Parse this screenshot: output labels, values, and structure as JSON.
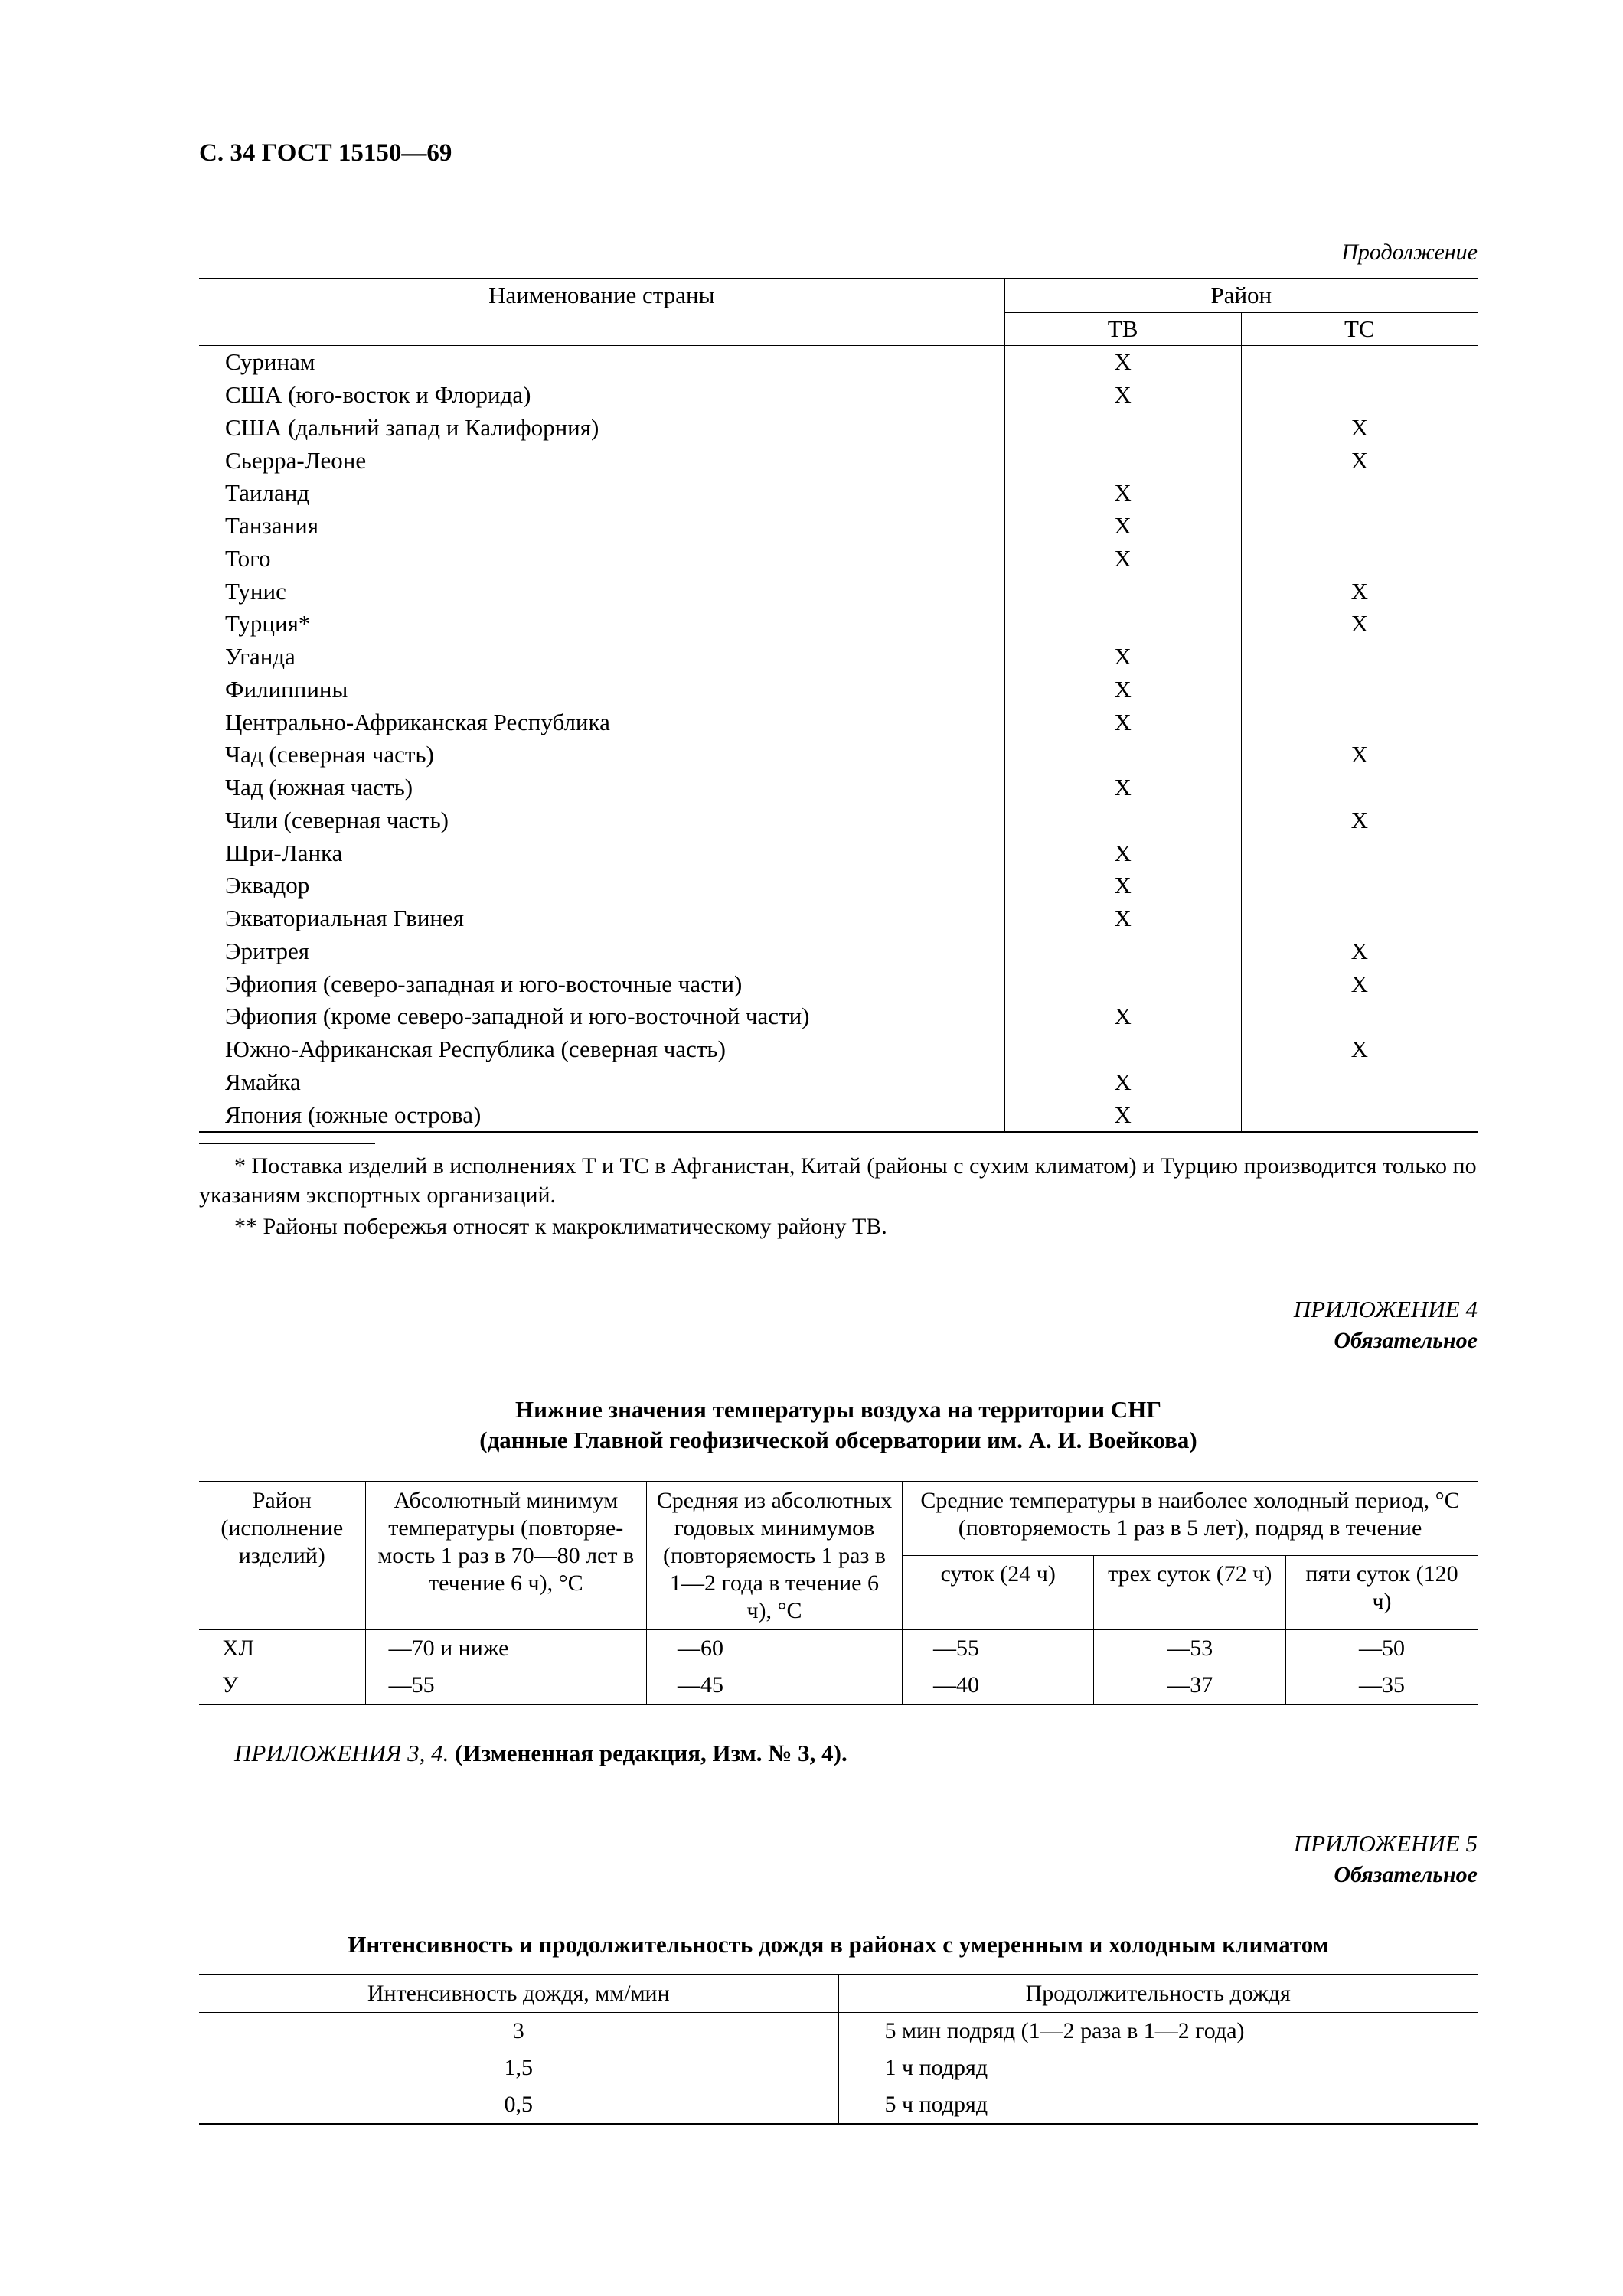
{
  "page_header": "С. 34 ГОСТ 15150—69",
  "continuation": "Продолжение",
  "table1": {
    "col_country": "Наименование страны",
    "col_group": "Район",
    "col_tv": "ТВ",
    "col_tc": "ТС",
    "rows": [
      {
        "name": "Суринам",
        "tv": "X",
        "tc": ""
      },
      {
        "name": "США (юго-восток и Флорида)",
        "tv": "X",
        "tc": ""
      },
      {
        "name": "США (дальний запад и Калифорния)",
        "tv": "",
        "tc": "X"
      },
      {
        "name": "Сьерра-Леоне",
        "tv": "",
        "tc": "X"
      },
      {
        "name": "Таиланд",
        "tv": "X",
        "tc": ""
      },
      {
        "name": "Танзания",
        "tv": "X",
        "tc": ""
      },
      {
        "name": "Того",
        "tv": "X",
        "tc": ""
      },
      {
        "name": "Тунис",
        "tv": "",
        "tc": "X"
      },
      {
        "name": "Турция*",
        "tv": "",
        "tc": "X"
      },
      {
        "name": "Уганда",
        "tv": "X",
        "tc": ""
      },
      {
        "name": "Филиппины",
        "tv": "X",
        "tc": ""
      },
      {
        "name": "Центрально-Африканская Республика",
        "tv": "X",
        "tc": ""
      },
      {
        "name": "Чад (северная часть)",
        "tv": "",
        "tc": "X"
      },
      {
        "name": "Чад (южная часть)",
        "tv": "X",
        "tc": ""
      },
      {
        "name": "Чили (северная часть)",
        "tv": "",
        "tc": "X"
      },
      {
        "name": "Шри-Ланка",
        "tv": "X",
        "tc": ""
      },
      {
        "name": "Эквадор",
        "tv": "X",
        "tc": ""
      },
      {
        "name": "Экваториальная Гвинея",
        "tv": "X",
        "tc": ""
      },
      {
        "name": "Эритрея",
        "tv": "",
        "tc": "X"
      },
      {
        "name": "Эфиопия (северо-западная и юго-восточные части)",
        "tv": "",
        "tc": "X"
      },
      {
        "name": "Эфиопия (кроме северо-западной и юго-восточной части)",
        "tv": "X",
        "tc": ""
      },
      {
        "name": "Южно-Африканская Республика (северная часть)",
        "tv": "",
        "tc": "X"
      },
      {
        "name": "Ямайка",
        "tv": "X",
        "tc": ""
      },
      {
        "name": "Япония (южные острова)",
        "tv": "X",
        "tc": ""
      }
    ]
  },
  "footnote1": "* Поставка изделий в исполнениях Т и ТС в Афганистан, Китай (районы с сухим климатом) и Турцию производится только по указаниям экспортных организаций.",
  "footnote2": "** Районы побережья относят к макроклиматическому району ТВ.",
  "appendix4": "ПРИЛОЖЕНИЕ 4",
  "mandatory": "Обязательное",
  "title_t2_l1": "Нижние значения температуры воздуха на территории СНГ",
  "title_t2_l2": "(данные Главной геофизической обсерватории им. А. И. Воейкова)",
  "table2": {
    "h_region": "Район (исполнение изделий)",
    "h_absmin": "Абсолютный минимум температуры (повторяе­мость 1 раз в 70—80 лет в течение 6 ч), °С",
    "h_avgmin": "Средняя из абсолют­ных годовых миниму­мов (повторяемость 1 раз в 1—2 года в течение 6 ч), °С",
    "h_cold": "Средние температуры в наиболее холодный период, °С (повторяемость 1 раз в 5 лет), подряд в течение",
    "h_24": "суток (24 ч)",
    "h_72": "трех суток (72 ч)",
    "h_120": "пяти суток (120 ч)",
    "r0": {
      "reg": "ХЛ",
      "absmin": "—70 и ниже",
      "avgmin": "—60",
      "d24": "—55",
      "d72": "—53",
      "d120": "—50"
    },
    "r1": {
      "reg": "У",
      "absmin": "—55",
      "avgmin": "—45",
      "d24": "—40",
      "d72": "—37",
      "d120": "—35"
    }
  },
  "note34_ital": "ПРИЛОЖЕНИЯ 3, 4. ",
  "note34_bold": "(Измененная редакция, Изм. № 3, 4).",
  "appendix5": "ПРИЛОЖЕНИЕ 5",
  "title_t3": "Интенсивность и продолжительность дождя в районах с умеренным и холодным климатом",
  "table3": {
    "h_intens": "Интенсивность дождя, мм/мин",
    "h_dur": "Продолжительность дождя",
    "r0": {
      "i": "3",
      "d": "5 мин подряд (1—2 раза в 1—2 года)"
    },
    "r1": {
      "i": "1,5",
      "d": "1 ч подряд"
    },
    "r2": {
      "i": "0,5",
      "d": "5 ч подряд"
    }
  }
}
